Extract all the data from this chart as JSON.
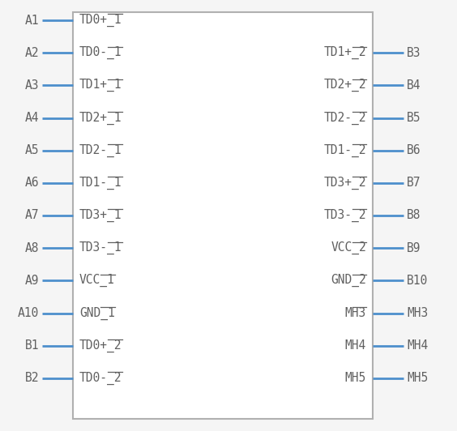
{
  "bg_color": "#f5f5f5",
  "box_color": "#b0b0b0",
  "pin_color": "#4d8fcc",
  "text_color": "#606060",
  "left_pins": [
    {
      "name": "A1",
      "label": "TD0+_1",
      "overbar": true
    },
    {
      "name": "A2",
      "label": "TD0-_1",
      "overbar": true
    },
    {
      "name": "A3",
      "label": "TD1+_1",
      "overbar": true
    },
    {
      "name": "A4",
      "label": "TD2+_1",
      "overbar": true
    },
    {
      "name": "A5",
      "label": "TD2-_1",
      "overbar": true
    },
    {
      "name": "A6",
      "label": "TD1-_1",
      "overbar": true
    },
    {
      "name": "A7",
      "label": "TD3+_1",
      "overbar": true
    },
    {
      "name": "A8",
      "label": "TD3-_1",
      "overbar": true
    },
    {
      "name": "A9",
      "label": "VCC_1",
      "overbar": true
    },
    {
      "name": "A10",
      "label": "GND_1",
      "overbar": true
    },
    {
      "name": "B1",
      "label": "TD0+_2",
      "overbar": true
    },
    {
      "name": "B2",
      "label": "TD0-_2",
      "overbar": true
    }
  ],
  "right_pins": [
    {
      "name": "B3",
      "label": "TD1+_2",
      "overbar": true
    },
    {
      "name": "B4",
      "label": "TD2+_2",
      "overbar": true
    },
    {
      "name": "B5",
      "label": "TD2-_2",
      "overbar": true
    },
    {
      "name": "B6",
      "label": "TD1-_2",
      "overbar": true
    },
    {
      "name": "B7",
      "label": "TD3+_2",
      "overbar": true
    },
    {
      "name": "B8",
      "label": "TD3-_2",
      "overbar": true
    },
    {
      "name": "B9",
      "label": "VCC_2",
      "overbar": true
    },
    {
      "name": "B10",
      "label": "GND_2",
      "overbar": true
    },
    {
      "name": "MH3",
      "label": "MH3",
      "overbar": true
    },
    {
      "name": "MH4",
      "label": "MH4",
      "overbar": false
    },
    {
      "name": "MH5",
      "label": "MH5",
      "overbar": false
    }
  ],
  "figsize": [
    5.64,
    5.32
  ],
  "dpi": 100,
  "font_size": 10.5,
  "font_family": "monospace"
}
